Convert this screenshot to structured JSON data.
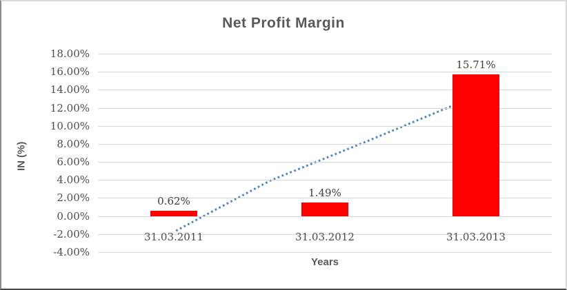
{
  "chart_data": {
    "type": "bar",
    "title": "Net Profit Margin",
    "xlabel": "Years",
    "ylabel": "IN (%)",
    "categories": [
      "31.03.2011",
      "31.03.2012",
      "31.03.2013"
    ],
    "values": [
      0.62,
      1.49,
      15.71
    ],
    "data_labels": [
      "0.62%",
      "1.49%",
      "15.71%"
    ],
    "ylim": [
      -4,
      18
    ],
    "y_tick_step": 2,
    "y_ticks": [
      "18.00%",
      "16.00%",
      "14.00%",
      "12.00%",
      "10.00%",
      "8.00%",
      "6.00%",
      "4.00%",
      "2.00%",
      "0.00%",
      "-2.00%",
      "-4.00%"
    ],
    "grid": true,
    "legend": "none",
    "colors": {
      "bar": "#ff0000",
      "gridline": "#d6d6d6",
      "trendline": "#4f86c6",
      "title_text": "#595959",
      "tick_text": "#4c4c4c"
    },
    "trendline": {
      "style": "dotted",
      "points": [
        {
          "x_frac": 0.172,
          "value": -1.63
        },
        {
          "x_frac": 0.38,
          "value": 3.94
        },
        {
          "x_frac": 0.593,
          "value": 8.3
        },
        {
          "x_frac": 0.83,
          "value": 13.26
        }
      ]
    }
  }
}
